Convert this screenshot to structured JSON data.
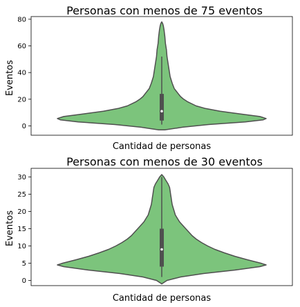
{
  "colors": {
    "violin_fill": "#7cc47c",
    "violin_stroke": "#4f4f4f",
    "box": "#4f4f4f"
  },
  "chart_data": [
    {
      "type": "violin",
      "title": "Personas con menos de 75 eventos",
      "xlabel": "Cantidad de personas",
      "ylabel": "Eventos",
      "ylim": [
        -7,
        82
      ],
      "yticks": [
        0,
        20,
        40,
        60,
        80
      ],
      "box": {
        "whisker_low": 1,
        "q1": 4,
        "median": 11,
        "q3": 24,
        "whisker_high": 52
      },
      "density": [
        [
          -3,
          0.03
        ],
        [
          -1,
          0.2
        ],
        [
          1,
          0.45
        ],
        [
          3,
          0.8
        ],
        [
          4.5,
          0.97
        ],
        [
          5.5,
          1.0
        ],
        [
          7,
          0.94
        ],
        [
          9,
          0.75
        ],
        [
          11,
          0.56
        ],
        [
          13,
          0.42
        ],
        [
          15,
          0.33
        ],
        [
          18,
          0.25
        ],
        [
          20,
          0.21
        ],
        [
          22,
          0.18
        ],
        [
          25,
          0.15
        ],
        [
          28,
          0.12
        ],
        [
          32,
          0.1
        ],
        [
          37,
          0.08
        ],
        [
          42,
          0.07
        ],
        [
          47,
          0.06
        ],
        [
          52,
          0.05
        ],
        [
          57,
          0.045
        ],
        [
          62,
          0.035
        ],
        [
          67,
          0.03
        ],
        [
          72,
          0.022
        ],
        [
          75,
          0.015
        ],
        [
          77,
          0.008
        ],
        [
          78,
          0.0
        ]
      ]
    },
    {
      "type": "violin",
      "title": "Personas con menos de 30 eventos",
      "xlabel": "Cantidad de personas",
      "ylabel": "Eventos",
      "ylim": [
        -1.5,
        32.5
      ],
      "yticks": [
        0,
        5,
        10,
        15,
        20,
        25,
        30
      ],
      "box": {
        "whisker_low": 1,
        "q1": 4,
        "median": 9,
        "q3": 15,
        "whisker_high": 30
      },
      "density": [
        [
          -1,
          0.0
        ],
        [
          0,
          0.05
        ],
        [
          1,
          0.18
        ],
        [
          2,
          0.4
        ],
        [
          3,
          0.7
        ],
        [
          4,
          0.94
        ],
        [
          4.5,
          1.0
        ],
        [
          5,
          0.95
        ],
        [
          6,
          0.82
        ],
        [
          7,
          0.7
        ],
        [
          8,
          0.6
        ],
        [
          9,
          0.51
        ],
        [
          10,
          0.44
        ],
        [
          11,
          0.38
        ],
        [
          12,
          0.33
        ],
        [
          13,
          0.29
        ],
        [
          14,
          0.26
        ],
        [
          15,
          0.23
        ],
        [
          16,
          0.2
        ],
        [
          17,
          0.17
        ],
        [
          18,
          0.15
        ],
        [
          19,
          0.13
        ],
        [
          20,
          0.12
        ],
        [
          21,
          0.11
        ],
        [
          22,
          0.1
        ],
        [
          23,
          0.095
        ],
        [
          24,
          0.09
        ],
        [
          25,
          0.085
        ],
        [
          26,
          0.08
        ],
        [
          27,
          0.075
        ],
        [
          28,
          0.06
        ],
        [
          29,
          0.04
        ],
        [
          30,
          0.02
        ],
        [
          30.7,
          0.0
        ]
      ]
    }
  ]
}
